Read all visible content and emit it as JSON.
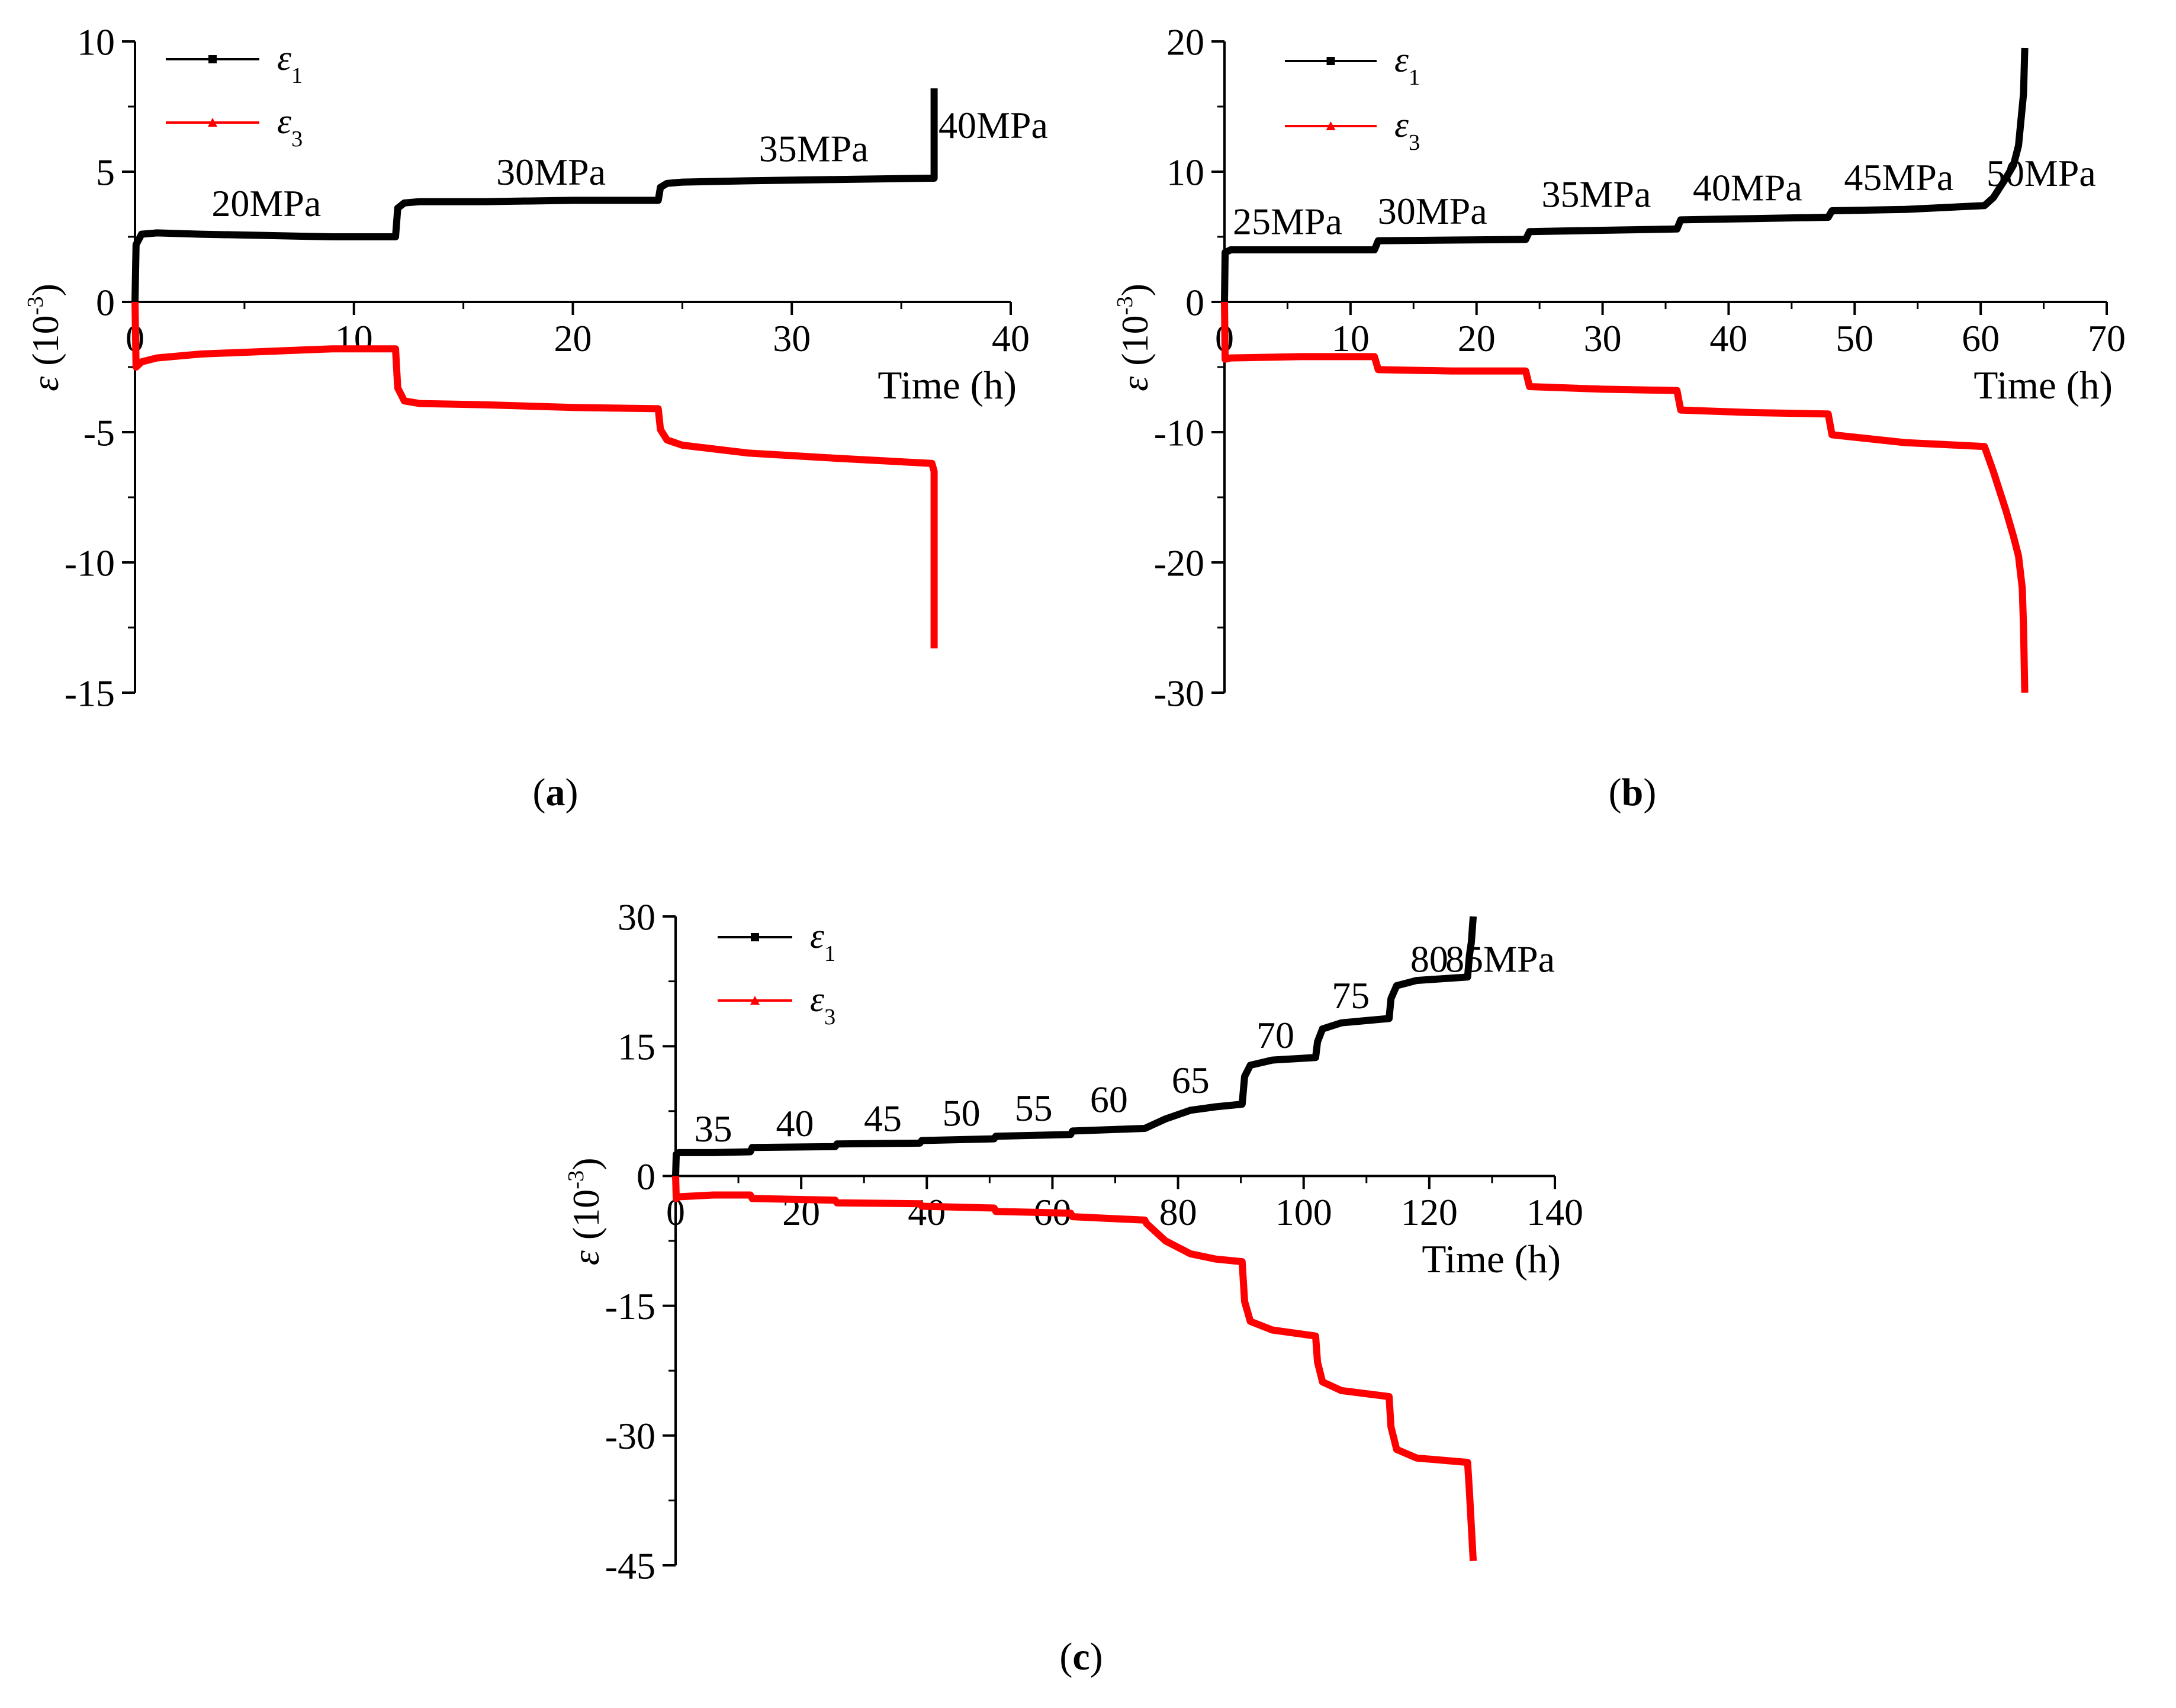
{
  "colors": {
    "e1": "#000000",
    "e3": "#ff0000",
    "axis": "#000000"
  },
  "chart_data": [
    {
      "panel_label": "a",
      "type": "line",
      "xlabel": "Time (h)",
      "ylabel_symbol": "ε",
      "ylabel_unit_base": "(10",
      "ylabel_unit_exp": "-3",
      "ylabel_unit_close": ")",
      "xlim": [
        0,
        40
      ],
      "ylim": [
        -15,
        10
      ],
      "xticks": [
        0,
        10,
        20,
        30,
        40
      ],
      "yticks": [
        10,
        5,
        0,
        -5,
        -10,
        -15
      ],
      "legend": [
        {
          "symbol": "ε",
          "sub": "1"
        },
        {
          "symbol": "ε",
          "sub": "3"
        }
      ],
      "annotations": [
        {
          "text": "20MPa",
          "x": 6,
          "y": 3.3
        },
        {
          "text": "30MPa",
          "x": 19,
          "y": 4.5
        },
        {
          "text": "35MPa",
          "x": 31,
          "y": 5.4
        },
        {
          "text": "40MPa",
          "x": 39.2,
          "y": 6.3
        }
      ],
      "series": [
        {
          "name": "ε1",
          "x": [
            0,
            0.05,
            0.3,
            1,
            3,
            6,
            9,
            11.9,
            12,
            12.3,
            13,
            16,
            20,
            23.9,
            24,
            24.3,
            25,
            28,
            32,
            36.4,
            36.5,
            36.5
          ],
          "y": [
            0,
            2.2,
            2.6,
            2.65,
            2.6,
            2.55,
            2.5,
            2.5,
            3.6,
            3.8,
            3.85,
            3.85,
            3.9,
            3.9,
            4.4,
            4.55,
            4.6,
            4.65,
            4.7,
            4.75,
            4.75,
            8.2
          ]
        },
        {
          "name": "ε3",
          "x": [
            0,
            0.05,
            0.3,
            1,
            3,
            6,
            9,
            11.9,
            12,
            12.3,
            13,
            16,
            20,
            23.9,
            24,
            24.3,
            25,
            28,
            32,
            36.4,
            36.5,
            36.5
          ],
          "y": [
            0,
            -2.5,
            -2.3,
            -2.15,
            -2.0,
            -1.9,
            -1.8,
            -1.8,
            -3.3,
            -3.8,
            -3.9,
            -3.95,
            -4.05,
            -4.1,
            -4.9,
            -5.3,
            -5.5,
            -5.8,
            -6.0,
            -6.2,
            -6.5,
            -13.3
          ]
        }
      ]
    },
    {
      "panel_label": "b",
      "type": "line",
      "xlabel": "Time (h)",
      "ylabel_symbol": "ε",
      "ylabel_unit_base": "(10",
      "ylabel_unit_exp": "-3",
      "ylabel_unit_close": ")",
      "xlim": [
        0,
        70
      ],
      "ylim": [
        -30,
        20
      ],
      "xticks": [
        0,
        10,
        20,
        30,
        40,
        50,
        60,
        70
      ],
      "yticks": [
        20,
        10,
        0,
        -10,
        -20,
        -30
      ],
      "legend": [
        {
          "symbol": "ε",
          "sub": "1"
        },
        {
          "symbol": "ε",
          "sub": "3"
        }
      ],
      "annotations": [
        {
          "text": "25MPa",
          "x": 5,
          "y": 5.2
        },
        {
          "text": "30MPa",
          "x": 16.5,
          "y": 6.0
        },
        {
          "text": "35MPa",
          "x": 29.5,
          "y": 7.3
        },
        {
          "text": "40MPa",
          "x": 41.5,
          "y": 7.8
        },
        {
          "text": "45MPa",
          "x": 53.5,
          "y": 8.6
        },
        {
          "text": "50MPa",
          "x": 64.8,
          "y": 8.9
        }
      ],
      "series": [
        {
          "name": "ε1",
          "x": [
            0,
            0.05,
            0.5,
            6,
            11.9,
            12.2,
            18,
            23.9,
            24.2,
            30,
            35.9,
            36.2,
            42,
            47.9,
            48.2,
            54,
            60.3,
            61,
            62,
            62.6,
            63,
            63.3,
            63.4,
            63.5
          ],
          "y": [
            0,
            3.8,
            4.0,
            4.0,
            4.0,
            4.7,
            4.75,
            4.8,
            5.4,
            5.5,
            5.6,
            6.3,
            6.4,
            6.5,
            7.0,
            7.1,
            7.4,
            8.0,
            9.5,
            10.5,
            12,
            15,
            16,
            19.5
          ]
        },
        {
          "name": "ε3",
          "x": [
            0,
            0.05,
            0.5,
            6,
            11.9,
            12.2,
            18,
            23.9,
            24.2,
            30,
            35.9,
            36.2,
            42,
            47.9,
            48.2,
            54,
            60.3,
            61,
            62,
            62.6,
            63,
            63.3,
            63.4,
            63.5
          ],
          "y": [
            0,
            -4.4,
            -4.3,
            -4.2,
            -4.2,
            -5.2,
            -5.3,
            -5.3,
            -6.5,
            -6.7,
            -6.8,
            -8.3,
            -8.5,
            -8.6,
            -10.2,
            -10.8,
            -11.1,
            -13,
            -16,
            -18,
            -19.5,
            -22,
            -25,
            -30
          ]
        }
      ]
    },
    {
      "panel_label": "c",
      "type": "line",
      "xlabel": "Time (h)",
      "ylabel_symbol": "ε",
      "ylabel_unit_base": "(10",
      "ylabel_unit_exp": "-3",
      "ylabel_unit_close": ")",
      "xlim": [
        0,
        140
      ],
      "ylim": [
        -45,
        30
      ],
      "xticks": [
        0,
        20,
        40,
        60,
        80,
        100,
        120,
        140
      ],
      "yticks": [
        30,
        15,
        0,
        -15,
        -30,
        -45
      ],
      "legend": [
        {
          "symbol": "ε",
          "sub": "1"
        },
        {
          "symbol": "ε",
          "sub": "3"
        }
      ],
      "annotations": [
        {
          "text": "35",
          "x": 6,
          "y": 4.0
        },
        {
          "text": "40",
          "x": 19,
          "y": 4.6
        },
        {
          "text": "45",
          "x": 33,
          "y": 5.2
        },
        {
          "text": "50",
          "x": 45.5,
          "y": 5.8
        },
        {
          "text": "55",
          "x": 57,
          "y": 6.4
        },
        {
          "text": "60",
          "x": 69,
          "y": 7.4
        },
        {
          "text": "65",
          "x": 82,
          "y": 9.6
        },
        {
          "text": "70",
          "x": 95.5,
          "y": 14.8
        },
        {
          "text": "75",
          "x": 107.5,
          "y": 19.4
        },
        {
          "text": "80",
          "x": 120,
          "y": 23.6
        },
        {
          "text": "85MPa",
          "x": 140,
          "y": 23.6
        }
      ],
      "series": [
        {
          "name": "ε1",
          "x": [
            0,
            0.1,
            0.5,
            6,
            11.9,
            12.2,
            25.4,
            25.7,
            38.9,
            39.2,
            50.7,
            51,
            62.9,
            63.2,
            74.7,
            75,
            78,
            82,
            86,
            90.2,
            90.6,
            91.5,
            95,
            101.9,
            102.2,
            103,
            106,
            113.6,
            113.9,
            114.8,
            118,
            126.1,
            126.4,
            126.7,
            127
          ],
          "y": [
            0,
            2.5,
            2.7,
            2.7,
            2.8,
            3.3,
            3.4,
            3.7,
            3.8,
            4.1,
            4.3,
            4.6,
            4.8,
            5.2,
            5.5,
            5.6,
            6.6,
            7.6,
            8.0,
            8.3,
            11.5,
            12.8,
            13.4,
            13.7,
            15.5,
            17.0,
            17.7,
            18.2,
            20.5,
            22.0,
            22.6,
            23.0,
            25.5,
            27,
            30
          ]
        },
        {
          "name": "ε3",
          "x": [
            0,
            0.1,
            0.5,
            6,
            11.9,
            12.2,
            25.4,
            25.7,
            38.9,
            39.2,
            50.7,
            51,
            62.9,
            63.2,
            74.7,
            75,
            78,
            82,
            86,
            90.2,
            90.6,
            91.5,
            95,
            101.9,
            102.2,
            103,
            106,
            113.6,
            113.9,
            114.8,
            118,
            126.1,
            126.4,
            126.7,
            127
          ],
          "y": [
            0,
            -2.6,
            -2.4,
            -2.2,
            -2.2,
            -2.6,
            -2.8,
            -3.1,
            -3.2,
            -3.5,
            -3.7,
            -4.1,
            -4.3,
            -4.7,
            -5.1,
            -5.5,
            -7.5,
            -9.0,
            -9.6,
            -9.9,
            -14.5,
            -16.8,
            -17.8,
            -18.5,
            -21.5,
            -23.8,
            -24.8,
            -25.5,
            -29,
            -31.6,
            -32.6,
            -33.1,
            -36.5,
            -40.5,
            -44.5
          ]
        }
      ]
    }
  ]
}
